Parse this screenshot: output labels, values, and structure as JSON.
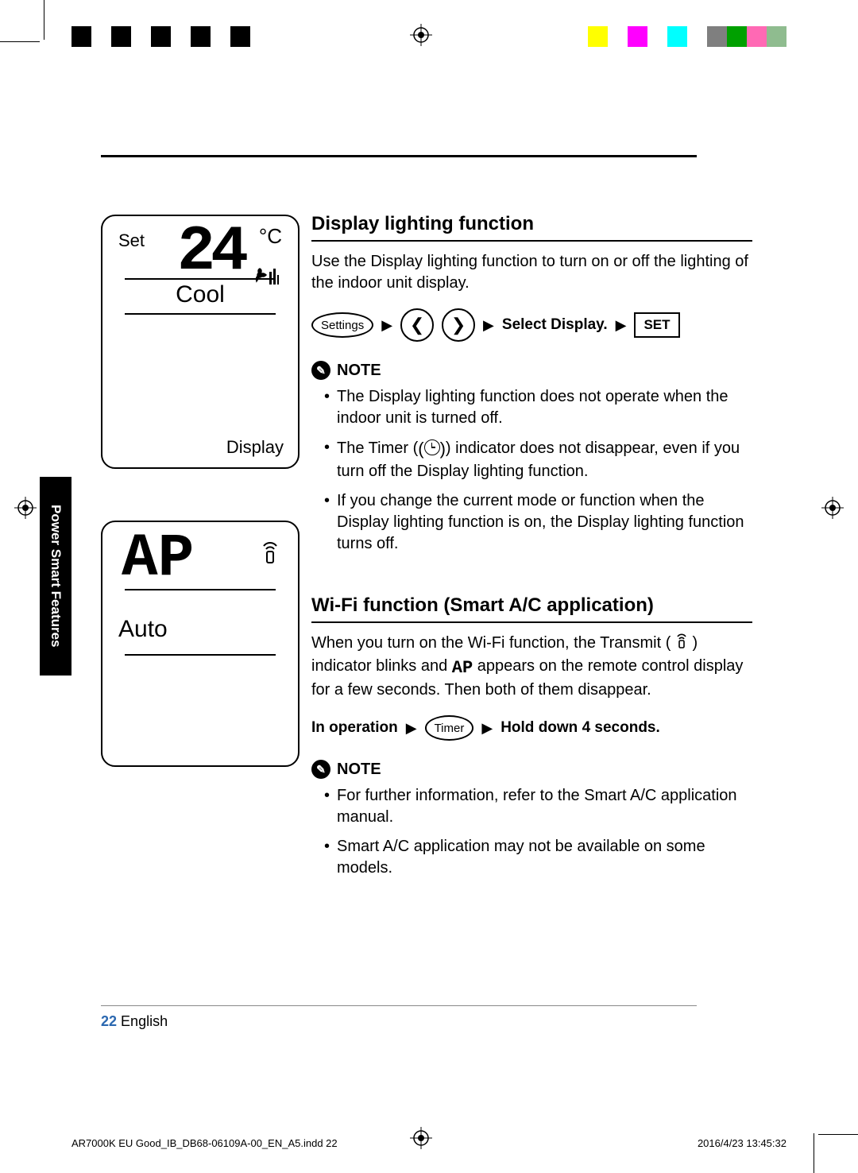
{
  "registration_bars_left": [
    "#000000",
    "#ffffff",
    "#000000",
    "#ffffff",
    "#000000",
    "#ffffff",
    "#000000",
    "#ffffff",
    "#000000",
    "#ffffff"
  ],
  "registration_bars_right": [
    "#ffff00",
    "#ffffff",
    "#ff00ff",
    "#ffffff",
    "#00ffff",
    "#ffffff",
    "#7f7f7f",
    "#00a000",
    "#ff69b4",
    "#8fbc8f"
  ],
  "side_tab": "Power Smart Features",
  "remote1": {
    "set_label": "Set",
    "unit": "°C",
    "temp": "24",
    "mode": "Cool",
    "bottom_label": "Display"
  },
  "remote2": {
    "ap": "AP",
    "mode": "Auto"
  },
  "section1": {
    "title": "Display lighting function",
    "intro": "Use the Display lighting function to turn on or off the lighting of the indoor unit display.",
    "step_settings": "Settings",
    "step_select": "Select Display.",
    "step_set": "SET",
    "note_label": "NOTE",
    "notes": [
      "The Display lighting function does not operate when the indoor unit is turned off.",
      "The Timer ( ) indicator does not disappear, even if you turn off the Display lighting function.",
      "If you change the current mode or function when the Display lighting function is on, the Display lighting function turns off."
    ],
    "note2_pre": "The Timer (",
    "note2_post": ") indicator does not disappear, even if you turn off the Display lighting function."
  },
  "section2": {
    "title": "Wi-Fi function (Smart A/C application)",
    "intro_pre": "When you turn on the Wi-Fi function, the Transmit ( ",
    "intro_mid": " ) indicator blinks and ",
    "intro_ap": "AP",
    "intro_post": " appears on the remote control display for a few seconds. Then both of them disappear.",
    "step_inop": "In operation",
    "step_timer": "Timer",
    "step_hold": "Hold down 4 seconds.",
    "note_label": "NOTE",
    "notes": [
      "For further information, refer to the Smart A/C application manual.",
      "Smart A/C application may not be available on some models."
    ]
  },
  "page_number": "22",
  "page_lang": "English",
  "footer_file": "AR7000K EU Good_IB_DB68-06109A-00_EN_A5.indd   22",
  "footer_date": "2016/4/23   13:45:32"
}
